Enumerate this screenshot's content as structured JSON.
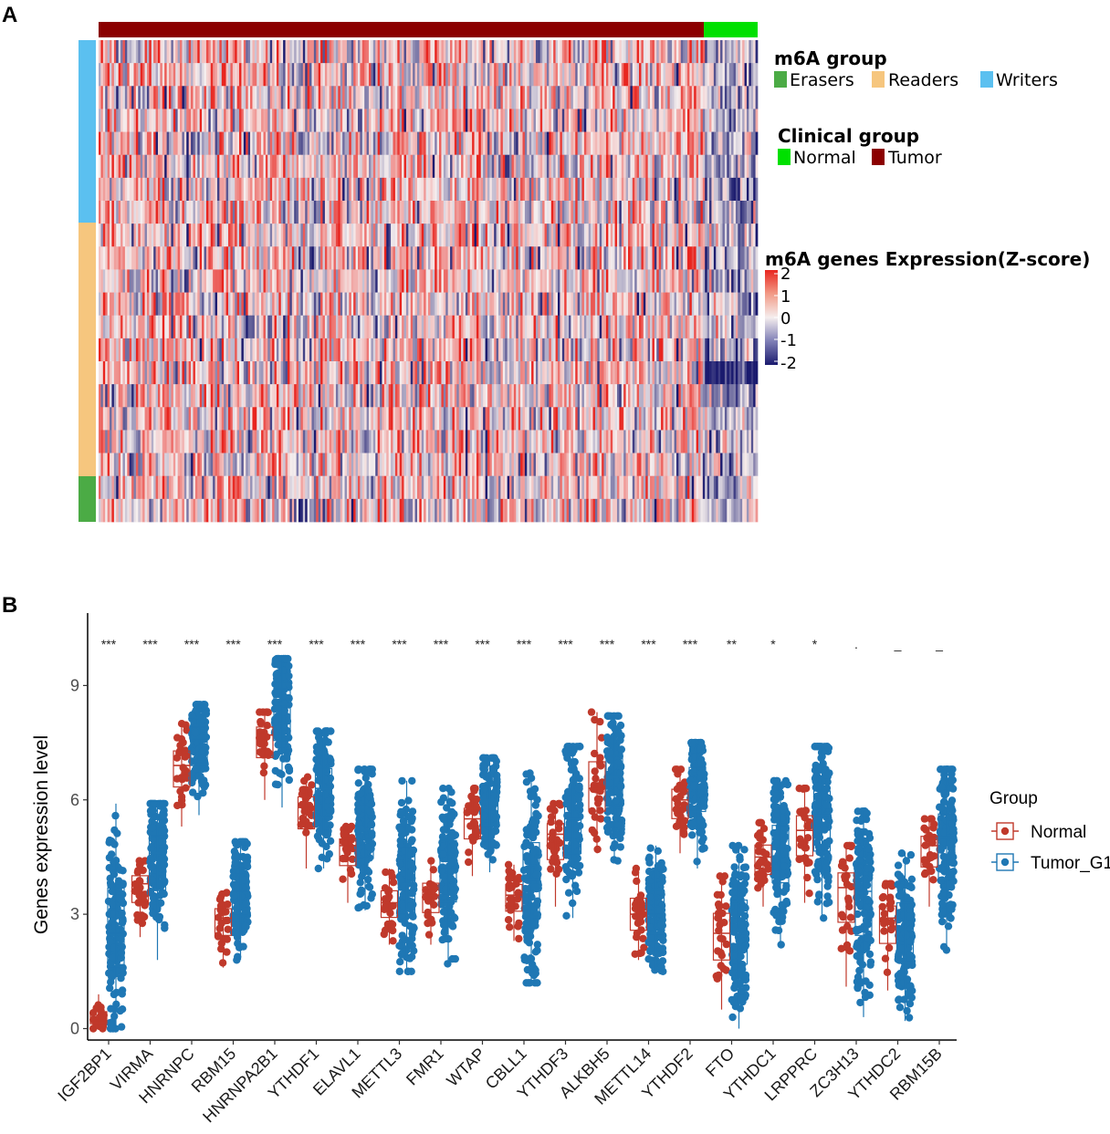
{
  "panelA": {
    "label": "A",
    "legend_m6a": {
      "title": "m6A group",
      "items": [
        "Erasers",
        "Readers",
        "Writers"
      ]
    },
    "legend_clinical": {
      "title": "Clinical group",
      "items": [
        "Normal",
        "Tumor"
      ]
    },
    "colorbar": {
      "title": "m6A genes Expression(Z-score)",
      "ticks": [
        "2",
        "1",
        "0",
        "-1",
        "-2"
      ]
    }
  },
  "panelB": {
    "label": "B",
    "legend_title": "Group",
    "legend_items": [
      "Normal",
      "Tumor_G1"
    ]
  },
  "colors": {
    "writers": "#5bc0f0",
    "readers": "#f6c67e",
    "erasers": "#4bab45",
    "normal_bar": "#00e000",
    "tumor_bar": "#8b0000",
    "heat_high": "#e8251f",
    "heat_mid": "#f5eeee",
    "heat_low": "#1a1a6e",
    "normal_points": "#c0392b",
    "tumor_points": "#1f77b4"
  },
  "chart_data": [
    {
      "type": "heatmap",
      "title": "m6A genes Expression(Z-score)",
      "row_groups": [
        {
          "group": "Writers",
          "rows": 8
        },
        {
          "group": "Readers",
          "rows": 11
        },
        {
          "group": "Erasers",
          "rows": 2
        }
      ],
      "column_groups": [
        {
          "group": "Tumor",
          "fraction": 0.92
        },
        {
          "group": "Normal",
          "fraction": 0.08
        }
      ],
      "zlim": [
        -2,
        2
      ],
      "note": "individual cell values not legible; pattern regenerated"
    },
    {
      "type": "box-jitter",
      "xlabel": "",
      "ylabel": "Genes expression level",
      "ylim": [
        -0.3,
        10.9
      ],
      "yticks": [
        0,
        3,
        6,
        9
      ],
      "categories": [
        "IGF2BP1",
        "VIRMA",
        "HNRNPC",
        "RBM15",
        "HNRNPA2B1",
        "YTHDF1",
        "ELAVL1",
        "METTL3",
        "FMR1",
        "WTAP",
        "CBLL1",
        "YTHDF3",
        "ALKBH5",
        "METTL14",
        "YTHDF2",
        "FTO",
        "YTHDC1",
        "LRPPRC",
        "ZC3H13",
        "YTHDC2",
        "RBM15B"
      ],
      "significance": [
        "***",
        "***",
        "***",
        "***",
        "***",
        "***",
        "***",
        "***",
        "***",
        "***",
        "***",
        "***",
        "***",
        "***",
        "***",
        "**",
        "*",
        "*",
        ".",
        "_",
        "_"
      ],
      "series": [
        {
          "name": "Normal",
          "median": [
            0.2,
            3.8,
            6.9,
            2.9,
            7.7,
            5.8,
            4.8,
            3.3,
            3.5,
            5.5,
            3.5,
            5.1,
            6.3,
            3.0,
            6.0,
            2.5,
            4.5,
            5.2,
            3.7,
            2.9,
            4.8
          ],
          "min": [
            0.0,
            2.4,
            5.3,
            1.6,
            6.0,
            4.2,
            3.3,
            2.2,
            2.2,
            4.0,
            2.3,
            3.2,
            4.6,
            1.8,
            4.6,
            0.5,
            3.2,
            3.3,
            1.1,
            1.0,
            3.2
          ],
          "max": [
            0.9,
            4.4,
            8.0,
            3.6,
            8.3,
            6.6,
            5.3,
            4.2,
            4.4,
            6.3,
            4.3,
            5.9,
            8.3,
            4.2,
            6.8,
            4.0,
            5.4,
            6.3,
            4.8,
            3.8,
            5.5
          ]
        },
        {
          "name": "Tumor_G1",
          "median": [
            2.5,
            4.6,
            7.6,
            3.6,
            8.5,
            6.3,
            5.2,
            3.8,
            4.2,
            6.0,
            3.9,
            5.5,
            6.6,
            3.0,
            6.5,
            2.6,
            4.7,
            5.6,
            3.6,
            2.6,
            5.0
          ],
          "min": [
            0.0,
            1.8,
            5.6,
            1.8,
            5.8,
            4.2,
            3.1,
            1.5,
            1.7,
            4.1,
            1.2,
            2.9,
            4.4,
            1.5,
            4.2,
            0.0,
            2.2,
            2.9,
            0.3,
            0.2,
            2.0
          ],
          "max": [
            5.9,
            5.9,
            8.5,
            4.9,
            9.7,
            7.8,
            6.8,
            6.5,
            6.3,
            7.1,
            6.7,
            7.4,
            8.2,
            4.8,
            7.5,
            4.8,
            6.5,
            7.4,
            5.7,
            4.6,
            6.8
          ]
        }
      ],
      "legend_position": "right"
    }
  ]
}
